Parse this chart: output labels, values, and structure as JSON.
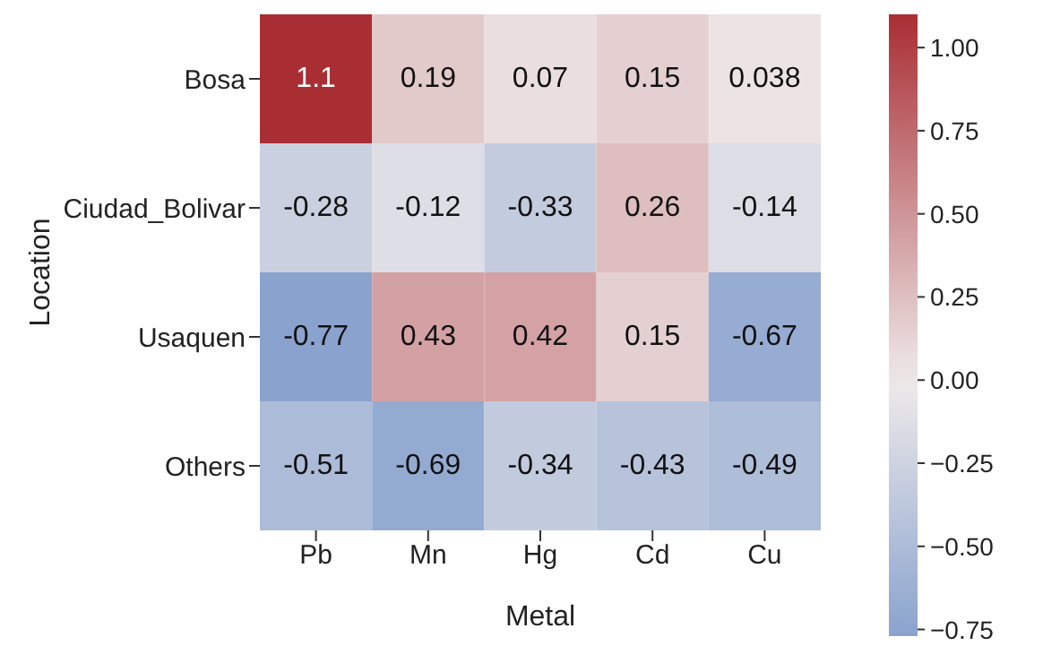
{
  "chart_data": {
    "type": "heatmap",
    "xlabel": "Metal",
    "ylabel": "Location",
    "categories": [
      "Pb",
      "Mn",
      "Hg",
      "Cd",
      "Cu"
    ],
    "y_categories": [
      "Bosa",
      "Ciudad_Bolivar",
      "Usaquen",
      "Others"
    ],
    "cells": [
      [
        1.1,
        0.19,
        0.07,
        0.15,
        0.038
      ],
      [
        -0.28,
        -0.12,
        -0.33,
        0.26,
        -0.14
      ],
      [
        -0.77,
        0.43,
        0.42,
        0.15,
        -0.67
      ],
      [
        -0.51,
        -0.69,
        -0.34,
        -0.43,
        -0.49
      ]
    ],
    "data_labels": true,
    "clim": [
      -0.77,
      1.1
    ],
    "cticks": [
      {
        "value": 1,
        "label": "1.00"
      },
      {
        "value": 0.75,
        "label": "0.75"
      },
      {
        "value": 0.5,
        "label": "0.50"
      },
      {
        "value": 0.25,
        "label": "0.25"
      },
      {
        "value": 0,
        "label": "0.00"
      },
      {
        "value": -0.25,
        "label": "−0.25"
      },
      {
        "value": -0.5,
        "label": "−0.50"
      },
      {
        "value": -0.75,
        "label": "−0.75"
      }
    ]
  }
}
